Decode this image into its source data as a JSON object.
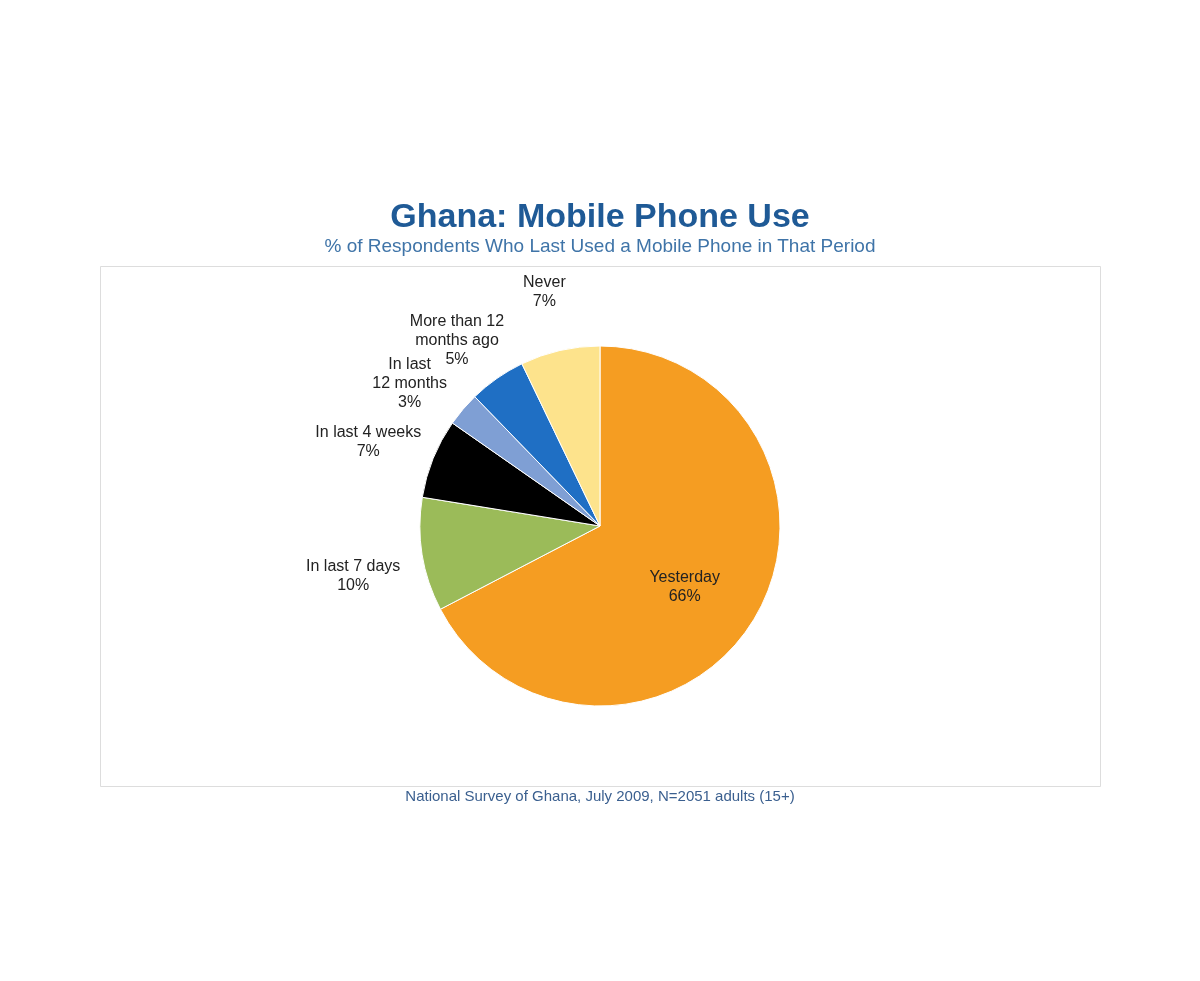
{
  "chart_data": {
    "type": "pie",
    "title": "Ghana: Mobile Phone Use",
    "subtitle": "% of Respondents Who Last Used a Mobile Phone in That Period",
    "categories": [
      "Yesterday",
      "In last 7 days",
      "In last 4 weeks",
      "In last 12 months",
      "More than 12 months ago",
      "Never"
    ],
    "values": [
      66,
      10,
      7,
      3,
      5,
      7
    ],
    "colors": [
      "#f59d22",
      "#9bbb59",
      "#000000",
      "#7f9fd4",
      "#1f6fc4",
      "#fde38c"
    ],
    "data_labels": true,
    "value_labels": [
      "66%",
      "10%",
      "7%",
      "3%",
      "5%",
      "7%"
    ],
    "legend": false,
    "annotations": [
      "National Survey of Ghana, July 2009, N=2051 adults (15+)"
    ]
  }
}
